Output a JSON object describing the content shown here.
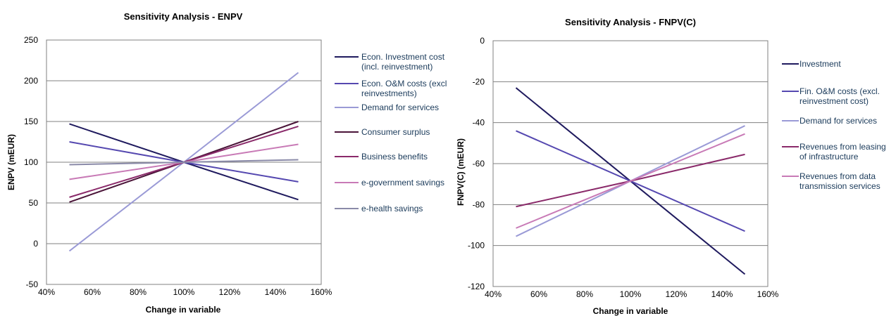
{
  "chart_data": [
    {
      "type": "line",
      "title": "Sensitivity Analysis - ENPV",
      "xlabel": "Change in variable",
      "ylabel": "ENPV (mEUR)",
      "xlim": [
        40,
        160
      ],
      "ylim": [
        -50,
        250
      ],
      "xticks": [
        "40%",
        "60%",
        "80%",
        "100%",
        "120%",
        "140%",
        "160%"
      ],
      "yticks": [
        "-50",
        "0",
        "50",
        "100",
        "150",
        "200",
        "250"
      ],
      "grid": "horizontal",
      "legend_position": "right",
      "x": [
        50,
        100,
        150
      ],
      "series": [
        {
          "name": "Econ. Investment cost\n(incl. reinvestment)",
          "color": "#1f1a5e",
          "values": [
            147,
            100,
            54
          ]
        },
        {
          "name": "Econ. O&M costs (excl\nreinvestments)",
          "color": "#5548b0",
          "values": [
            125,
            100,
            76
          ]
        },
        {
          "name": "Demand for services",
          "color": "#9a9ad6",
          "values": [
            -9,
            100,
            210
          ]
        },
        {
          "name": "Consumer surplus",
          "color": "#4a1438",
          "values": [
            51,
            100,
            150
          ]
        },
        {
          "name": "Business benefits",
          "color": "#8a2a6a",
          "values": [
            57,
            100,
            144
          ]
        },
        {
          "name": "e-government savings",
          "color": "#c87ab6",
          "values": [
            79,
            100,
            122
          ]
        },
        {
          "name": "e-health savings",
          "color": "#8a8aa8",
          "values": [
            97,
            100,
            103
          ]
        }
      ]
    },
    {
      "type": "line",
      "title": "Sensitivity Analysis - FNPV(C)",
      "xlabel": "Change in variable",
      "ylabel": "FNPV(C) (mEUR)",
      "xlim": [
        40,
        160
      ],
      "ylim": [
        -120,
        0
      ],
      "xticks": [
        "40%",
        "60%",
        "80%",
        "100%",
        "120%",
        "140%",
        "160%"
      ],
      "yticks": [
        "-120",
        "-100",
        "-80",
        "-60",
        "-40",
        "-20",
        "0"
      ],
      "grid": "horizontal",
      "legend_position": "right",
      "x": [
        50,
        100,
        150
      ],
      "series": [
        {
          "name": "Investment",
          "color": "#1f1a5e",
          "values": [
            -23,
            -68.5,
            -114
          ]
        },
        {
          "name": "Fin. O&M costs (excl.\nreinvestment cost)",
          "color": "#5548b0",
          "values": [
            -44,
            -68.5,
            -93
          ]
        },
        {
          "name": "Demand for services",
          "color": "#9a9ad6",
          "values": [
            -95.5,
            -68.5,
            -41.5
          ]
        },
        {
          "name": "Revenues from leasing\nof infrastructure",
          "color": "#8a2a6a",
          "values": [
            -81,
            -68.5,
            -55.5
          ]
        },
        {
          "name": "Revenues from data\ntransmission services",
          "color": "#c87ab6",
          "values": [
            -91.5,
            -68.5,
            -45.5
          ]
        }
      ]
    }
  ]
}
